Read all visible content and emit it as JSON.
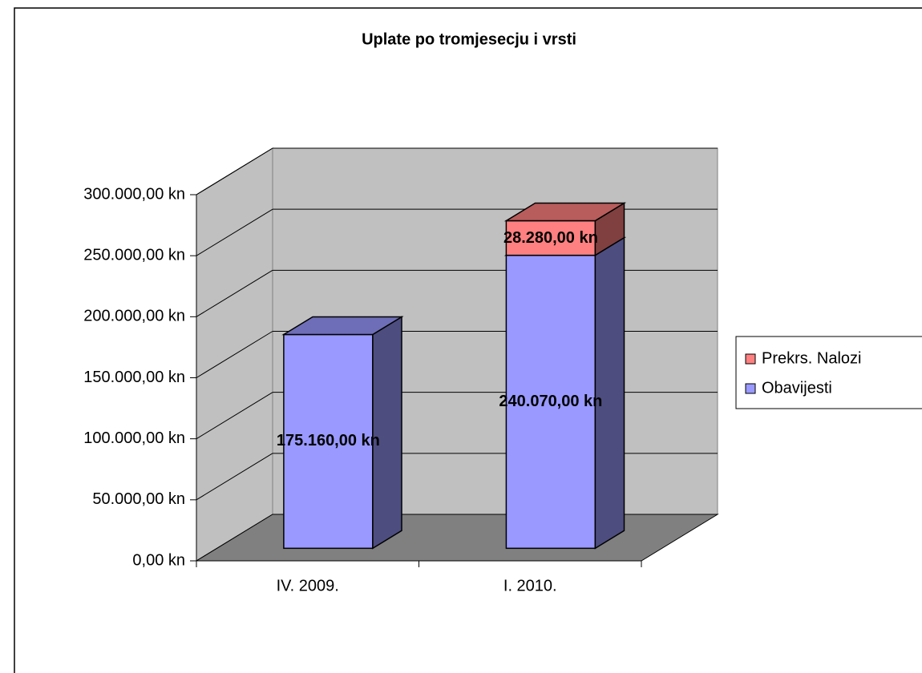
{
  "chart_data": {
    "type": "bar",
    "stacked": true,
    "title": "Uplate po tromjesecju i vrsti",
    "categories": [
      "IV. 2009.",
      "I. 2010."
    ],
    "series": [
      {
        "name": "Obavijesti",
        "color": "#9999ff",
        "values": [
          175160,
          240070
        ],
        "value_labels": [
          "175.160,00 kn",
          "240.070,00 kn"
        ]
      },
      {
        "name": "Prekrs. Nalozi",
        "color": "#ff8080",
        "values": [
          null,
          28280
        ],
        "value_labels": [
          null,
          "28.280,00 kn"
        ]
      }
    ],
    "ylim": [
      0,
      300000
    ],
    "yticks": [
      {
        "value": 0,
        "label": "0,00 kn"
      },
      {
        "value": 50000,
        "label": "50.000,00 kn"
      },
      {
        "value": 100000,
        "label": "100.000,00 kn"
      },
      {
        "value": 150000,
        "label": "150.000,00 kn"
      },
      {
        "value": 200000,
        "label": "200.000,00 kn"
      },
      {
        "value": 250000,
        "label": "250.000,00 kn"
      },
      {
        "value": 300000,
        "label": "300.000,00 kn"
      }
    ],
    "grid": true,
    "legend": "right"
  }
}
